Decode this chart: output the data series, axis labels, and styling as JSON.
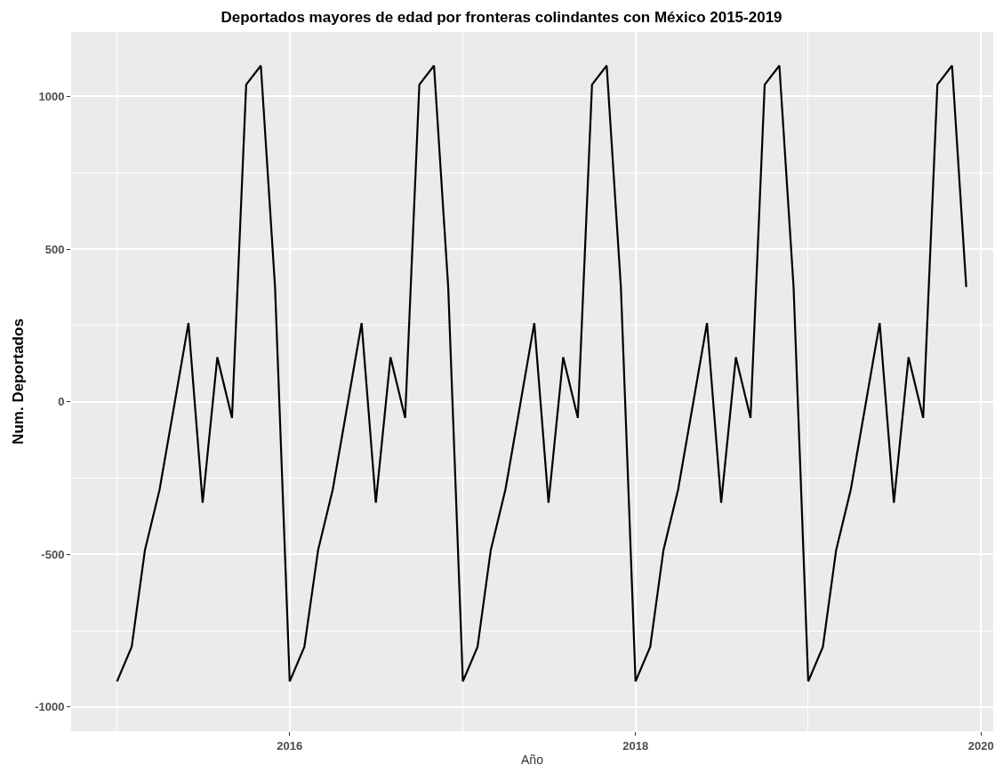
{
  "chart_data": {
    "type": "line",
    "title": "Deportados mayores de edad por fronteras colindantes con México 2015-2019",
    "xlabel": "Año",
    "ylabel": "Num. Deportados",
    "x": [
      "2015-01",
      "2015-02",
      "2015-03",
      "2015-04",
      "2015-05",
      "2015-06",
      "2015-07",
      "2015-08",
      "2015-09",
      "2015-10",
      "2015-11",
      "2015-12",
      "2016-01",
      "2016-02",
      "2016-03",
      "2016-04",
      "2016-05",
      "2016-06",
      "2016-07",
      "2016-08",
      "2016-09",
      "2016-10",
      "2016-11",
      "2016-12",
      "2017-01",
      "2017-02",
      "2017-03",
      "2017-04",
      "2017-05",
      "2017-06",
      "2017-07",
      "2017-08",
      "2017-09",
      "2017-10",
      "2017-11",
      "2017-12",
      "2018-01",
      "2018-02",
      "2018-03",
      "2018-04",
      "2018-05",
      "2018-06",
      "2018-07",
      "2018-08",
      "2018-09",
      "2018-10",
      "2018-11",
      "2018-12",
      "2019-01",
      "2019-02",
      "2019-03",
      "2019-04",
      "2019-05",
      "2019-06",
      "2019-07",
      "2019-08",
      "2019-09",
      "2019-10",
      "2019-11",
      "2019-12"
    ],
    "series": [
      {
        "color": "#000000",
        "values": [
          -916,
          -803,
          -486,
          -287,
          -20,
          258,
          -331,
          146,
          -53,
          1039,
          1101,
          376,
          -916,
          -803,
          -486,
          -287,
          -20,
          258,
          -331,
          146,
          -53,
          1039,
          1101,
          376,
          -916,
          -803,
          -486,
          -287,
          -20,
          258,
          -331,
          146,
          -53,
          1039,
          1101,
          376,
          -916,
          -803,
          -486,
          -287,
          -20,
          258,
          -331,
          146,
          -53,
          1039,
          1101,
          376,
          -916,
          -803,
          -486,
          -287,
          -20,
          258,
          -331,
          146,
          -53,
          1039,
          1101,
          376
        ]
      }
    ],
    "xlim": [
      "2014-09-26",
      "2020-01-27"
    ],
    "xticks": [
      {
        "value": "2016-01-01",
        "label": "2016"
      },
      {
        "value": "2018-01-01",
        "label": "2018"
      },
      {
        "value": "2020-01-01",
        "label": "2020"
      }
    ],
    "ylim": [
      -1079,
      1211
    ],
    "yticks": [
      -1000,
      -500,
      0,
      500,
      1000
    ],
    "grid": true,
    "marker": "none",
    "line_style": "solid"
  }
}
